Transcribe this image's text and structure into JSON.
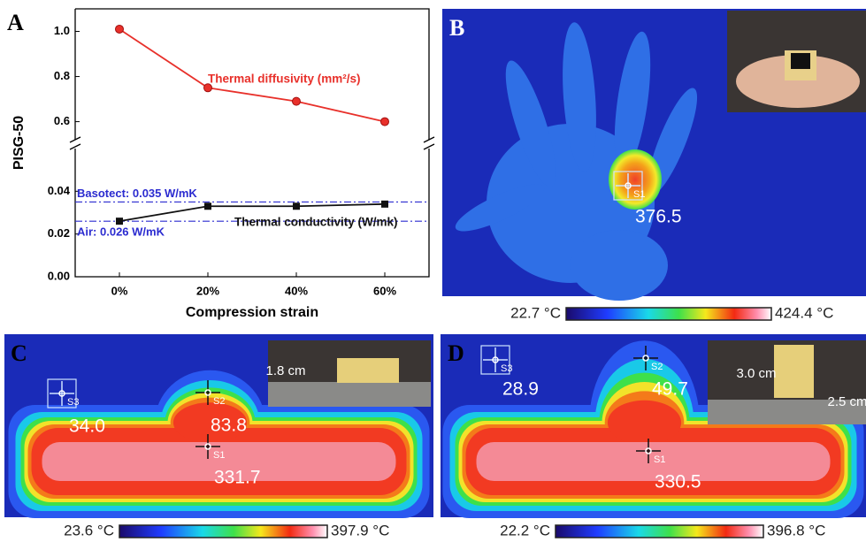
{
  "chart_data": {
    "type": "line",
    "panel_label": "A",
    "xlabel": "Compression strain",
    "ylabel": "PISG-50",
    "categories": [
      "0%",
      "20%",
      "40%",
      "60%"
    ],
    "ylim": [
      0,
      0.06
    ],
    "yticks": [
      {
        "value": 0,
        "label": "0.00"
      },
      0.02,
      0.04
    ],
    "y2lim": [
      0.52,
      1.1
    ],
    "y2ticks": [
      0.6,
      0.8,
      {
        "value": 1,
        "label": "1.0"
      }
    ],
    "series": [
      {
        "name": "Thermal diffusivity (mm²/s)",
        "color": "#e8302a",
        "axis": "y2",
        "values": [
          1.01,
          0.75,
          0.69,
          0.6
        ]
      },
      {
        "name": "Thermal conductivity (W/mk)",
        "color": "#111111",
        "values": [
          0.026,
          0.033,
          0.033,
          0.034
        ]
      }
    ],
    "reference_lines": [
      {
        "label": "Basotect: 0.035 W/mK",
        "value": 0.035,
        "color": "#2b2bd0"
      },
      {
        "label": "Air: 0.026 W/mK",
        "value": 0.026,
        "color": "#2b2bd0"
      }
    ]
  },
  "thermal_panels": [
    {
      "label": "B",
      "readings": [
        {
          "marker": "S1",
          "value": "376.5"
        }
      ],
      "scale": [
        "22.7 °C",
        "424.4 °C"
      ],
      "dimensions": []
    },
    {
      "label": "C",
      "readings": [
        {
          "marker": "S3",
          "value": "34.0"
        },
        {
          "marker": "S2",
          "value": "83.8"
        },
        {
          "marker": "S1",
          "value": "331.7"
        }
      ],
      "scale": [
        "23.6 °C",
        "397.9 °C"
      ],
      "dimensions": [
        "1.8 cm"
      ]
    },
    {
      "label": "D",
      "readings": [
        {
          "marker": "S3",
          "value": "28.9"
        },
        {
          "marker": "S2",
          "value": "49.7"
        },
        {
          "marker": "S1",
          "value": "330.5"
        }
      ],
      "scale": [
        "22.2 °C",
        "396.8 °C"
      ],
      "dimensions": [
        "3.0 cm",
        "2.5 cm"
      ]
    }
  ]
}
